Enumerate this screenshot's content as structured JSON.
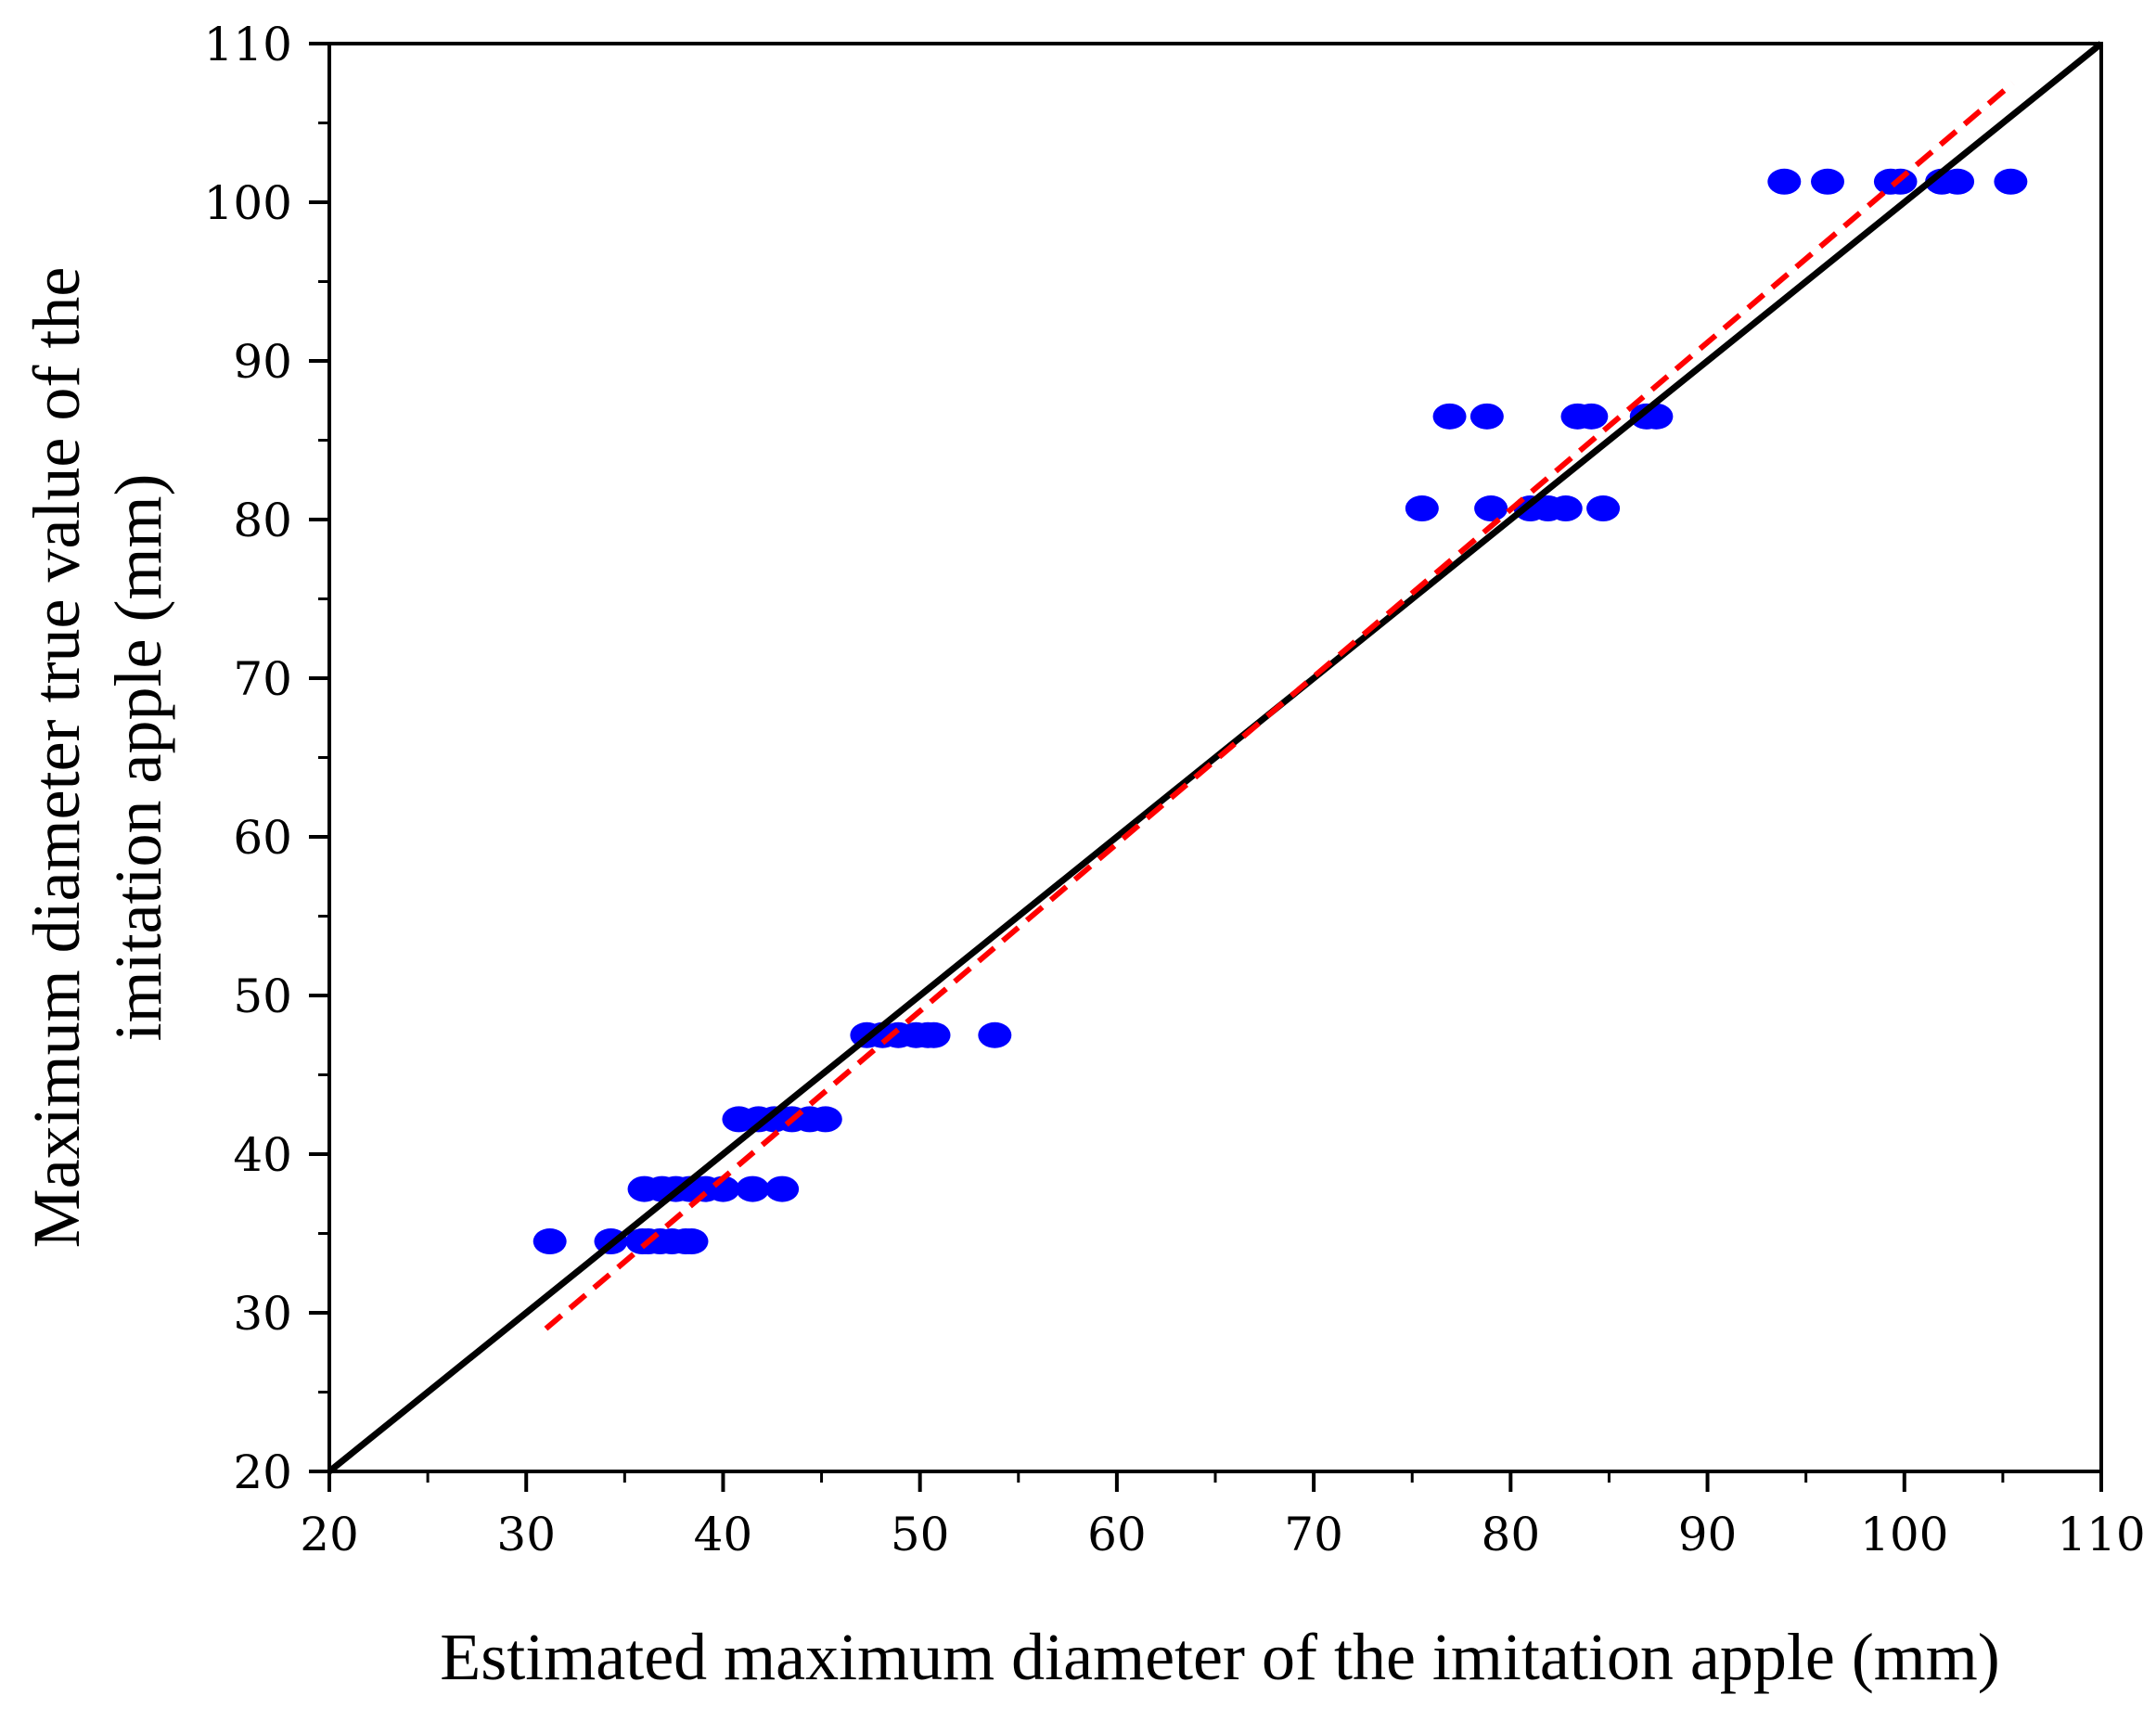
{
  "chart_data": {
    "type": "scatter",
    "title": "",
    "xlabel": "Estimated maximum diameter of the imitation apple (mm)",
    "ylabel_lines": [
      "Maximum diameter true value of the",
      "imitation apple (mm)"
    ],
    "xlim": [
      20,
      110
    ],
    "ylim": [
      20,
      110
    ],
    "xticks": [
      20,
      30,
      40,
      50,
      60,
      70,
      80,
      90,
      100,
      110
    ],
    "yticks": [
      20,
      30,
      40,
      50,
      60,
      70,
      80,
      90,
      100,
      110
    ],
    "grid": false,
    "colors": {
      "points": "#0000ff",
      "identity_line": "#000000",
      "fit_line": "#ff0000"
    },
    "series": [
      {
        "name": "measurements",
        "kind": "points",
        "x": [
          31.2,
          34.3,
          35.9,
          36.2,
          36.8,
          37.4,
          38.1,
          38.4,
          36.0,
          36.9,
          37.6,
          38.3,
          39.1,
          40.0,
          41.5,
          43.0,
          40.8,
          41.8,
          42.6,
          43.5,
          44.4,
          45.2,
          47.3,
          48.1,
          48.9,
          49.8,
          50.4,
          50.7,
          53.8,
          75.5,
          79.0,
          81.0,
          81.9,
          82.8,
          84.7,
          76.9,
          78.8,
          83.4,
          84.1,
          86.9,
          87.4,
          93.9,
          96.1,
          99.3,
          99.8,
          101.9,
          102.7,
          105.4
        ],
        "y": [
          34.5,
          34.5,
          34.5,
          34.5,
          34.5,
          34.5,
          34.5,
          34.5,
          37.8,
          37.8,
          37.8,
          37.8,
          37.8,
          37.8,
          37.8,
          37.8,
          42.2,
          42.2,
          42.2,
          42.2,
          42.2,
          42.2,
          47.5,
          47.5,
          47.5,
          47.5,
          47.5,
          47.5,
          47.5,
          80.7,
          80.7,
          80.7,
          80.7,
          80.7,
          80.7,
          86.5,
          86.5,
          86.5,
          86.5,
          86.5,
          86.5,
          101.3,
          101.3,
          101.3,
          101.3,
          101.3,
          101.3,
          101.3
        ]
      },
      {
        "name": "y = x",
        "kind": "line",
        "style": "solid",
        "x": [
          20,
          110
        ],
        "y": [
          20,
          110
        ]
      },
      {
        "name": "fitted line",
        "kind": "line",
        "style": "dashed",
        "x": [
          31,
          105.5
        ],
        "y": [
          29,
          107.5
        ]
      }
    ]
  }
}
